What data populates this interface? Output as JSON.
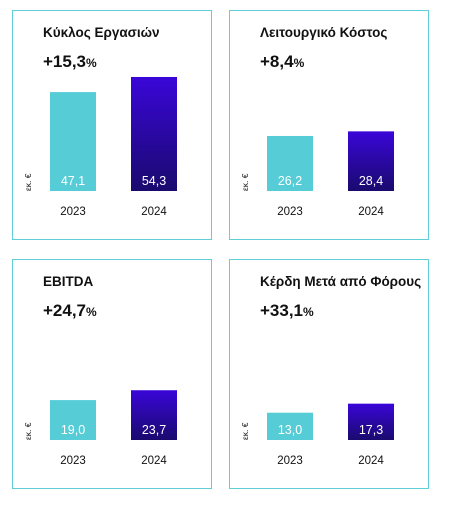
{
  "colors": {
    "border": "#5fd0d8",
    "bar_2023": "#56ccd6",
    "bar_2024_top": "#3a06d8",
    "bar_2024_bottom": "#1a0a6e"
  },
  "unit": "εκ. €",
  "chart_data": [
    {
      "type": "bar",
      "title": "Κύκλος Εργασιών",
      "change": {
        "number": "+15,3",
        "pct": "%"
      },
      "categories": [
        "2023",
        "2024"
      ],
      "values": [
        47.1,
        54.3
      ],
      "labels": [
        "47,1",
        "54,3"
      ]
    },
    {
      "type": "bar",
      "title": "Λειτουργικό Κόστος",
      "change": {
        "number": "+8,4",
        "pct": "%"
      },
      "categories": [
        "2023",
        "2024"
      ],
      "values": [
        26.2,
        28.4
      ],
      "labels": [
        "26,2",
        "28,4"
      ]
    },
    {
      "type": "bar",
      "title": "EBITDA",
      "change": {
        "number": "+24,7",
        "pct": "%"
      },
      "categories": [
        "2023",
        "2024"
      ],
      "values": [
        19.0,
        23.7
      ],
      "labels": [
        "19,0",
        "23,7"
      ]
    },
    {
      "type": "bar",
      "title": "Κέρδη Μετά από Φόρους",
      "change": {
        "number": "+33,1",
        "pct": "%"
      },
      "categories": [
        "2023",
        "2024"
      ],
      "values": [
        13.0,
        17.3
      ],
      "labels": [
        "13,0",
        "17,3"
      ]
    }
  ]
}
